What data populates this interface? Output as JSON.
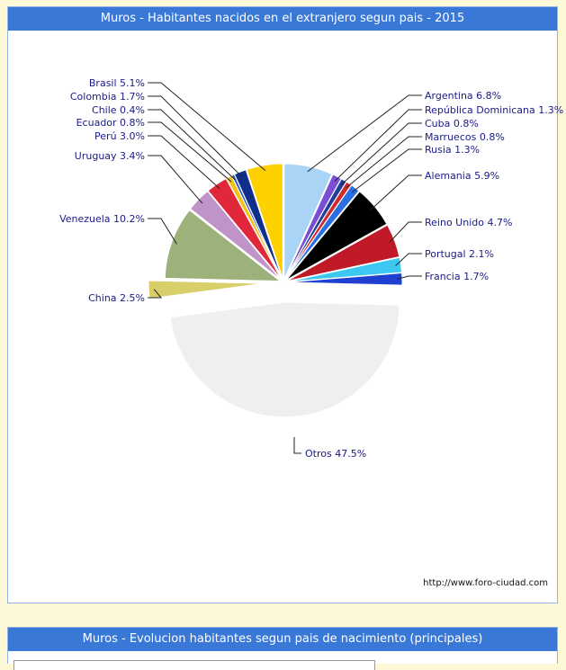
{
  "panel1": {
    "title": "Muros - Habitantes nacidos en el extranjero segun pais - 2015",
    "credit": "http://www.foro-ciudad.com"
  },
  "panel2": {
    "title": "Muros - Evolucion habitantes segun pais de nacimiento (principales)"
  },
  "chart_data": {
    "type": "pie",
    "title": "Muros - Habitantes nacidos en el extranjero segun pais - 2015",
    "slices": [
      {
        "label": "Argentina 6.8%",
        "value": 6.8,
        "color": "#a9d4f5"
      },
      {
        "label": "República Dominicana 1.3%",
        "value": 1.3,
        "color": "#7a4fd6"
      },
      {
        "label": "Cuba 0.8%",
        "value": 0.8,
        "color": "#1f3d99"
      },
      {
        "label": "Marruecos 0.8%",
        "value": 0.8,
        "color": "#d22a2a"
      },
      {
        "label": "Rusia 1.3%",
        "value": 1.3,
        "color": "#2a6fe0"
      },
      {
        "label": "Alemania 5.9%",
        "value": 5.9,
        "color": "#000000"
      },
      {
        "label": "Reino Unido 4.7%",
        "value": 4.7,
        "color": "#c01a28"
      },
      {
        "label": "Portugal 2.1%",
        "value": 2.1,
        "color": "#3cc8f0"
      },
      {
        "label": "Francia 1.7%",
        "value": 1.7,
        "color": "#1f3fd0"
      },
      {
        "label": "Otros 47.5%",
        "value": 47.5,
        "color": "#efefef"
      },
      {
        "label": "China 2.5%",
        "value": 2.5,
        "color": "#d9cf6a"
      },
      {
        "label": "Venezuela 10.2%",
        "value": 10.2,
        "color": "#9db27a"
      },
      {
        "label": "Uruguay 3.4%",
        "value": 3.4,
        "color": "#c094c8"
      },
      {
        "label": "Perú 3.0%",
        "value": 3.0,
        "color": "#e0283a"
      },
      {
        "label": "Ecuador 0.8%",
        "value": 0.8,
        "color": "#f2c21a"
      },
      {
        "label": "Chile 0.4%",
        "value": 0.4,
        "color": "#2a56c8"
      },
      {
        "label": "Colombia 1.7%",
        "value": 1.7,
        "color": "#0f2f8a"
      },
      {
        "label": "Brasil 5.1%",
        "value": 5.1,
        "color": "#ffd000"
      }
    ]
  }
}
